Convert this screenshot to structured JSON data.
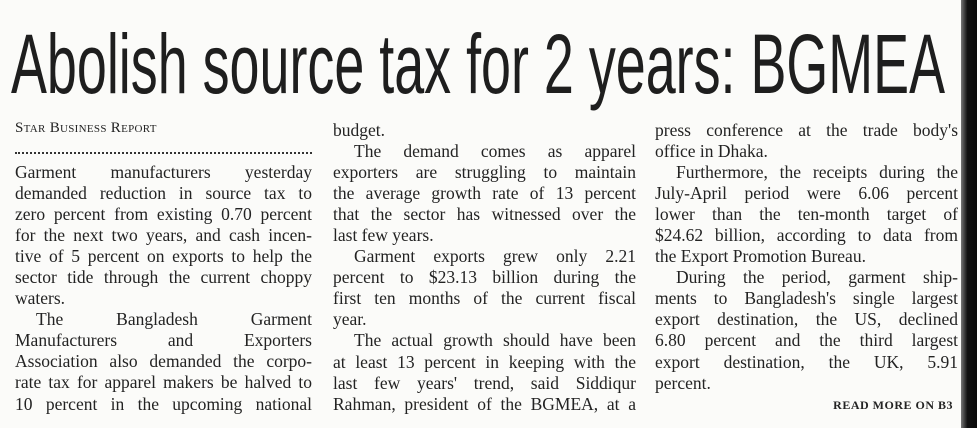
{
  "headline": "Abolish source tax for 2 years: BGMEA",
  "byline": "Star Business Report",
  "columns": [
    {
      "paragraphs": [
        {
          "lines": [
            "Garment manufacturers yesterday",
            "demanded reduction in source tax to",
            "zero percent from existing 0.70 percent",
            "for the next two years, and cash incen-",
            "tive of 5 percent on exports to help the",
            "sector tide through the current choppy",
            "waters."
          ]
        },
        {
          "lines": [
            "The Bangladesh Garment",
            "Manufacturers and Exporters",
            "Association also demanded the corpo-",
            "rate tax for apparel makers be halved to",
            "10 percent in the upcoming national"
          ]
        }
      ]
    },
    {
      "paragraphs": [
        {
          "lines": [
            "budget."
          ]
        },
        {
          "lines": [
            "The demand comes as apparel",
            "exporters are struggling to maintain",
            "the average growth rate of 13 percent",
            "that the sector has witnessed over the",
            "last few years."
          ]
        },
        {
          "lines": [
            "Garment exports grew only 2.21",
            "percent to $23.13 billion during the",
            "first ten months of the current fiscal",
            "year."
          ]
        },
        {
          "lines": [
            "The actual growth should have been",
            "at least 13 percent in keeping with the",
            "last few years' trend, said Siddiqur",
            "Rahman, president of the BGMEA, at a"
          ]
        }
      ]
    },
    {
      "paragraphs": [
        {
          "lines": [
            "press conference at the trade body's",
            "office in Dhaka."
          ]
        },
        {
          "lines": [
            "Furthermore, the receipts during the",
            "July-April period were 6.06 percent",
            "lower than the ten-month target of",
            "$24.62 billion, according to data from",
            "the Export Promotion Bureau."
          ]
        },
        {
          "lines": [
            "During the period, garment ship-",
            "ments to Bangladesh's single largest",
            "export destination, the US, declined",
            "6.80 percent and the third largest",
            "export destination, the UK, 5.91",
            "percent."
          ]
        }
      ]
    }
  ],
  "read_more": "READ MORE ON B3"
}
